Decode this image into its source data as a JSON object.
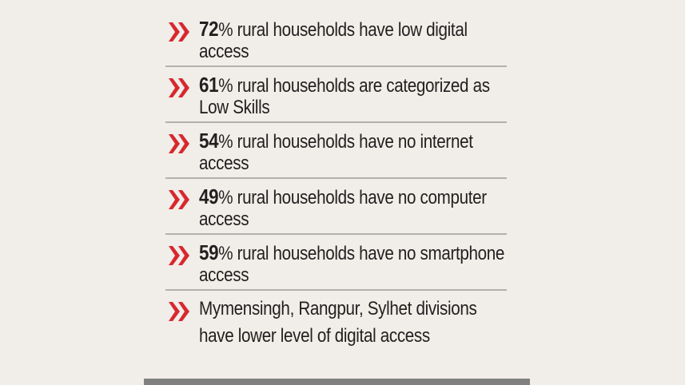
{
  "colors": {
    "background": "#f1ede8",
    "chevron": "#d7282f",
    "text": "#231f20",
    "divider": "#b4b0ad",
    "bar": "#808080"
  },
  "icon": "double-chevron-right-icon",
  "items": [
    {
      "number": "72",
      "text": "% rural households have low digital access"
    },
    {
      "number": "61",
      "text": "% rural households are categorized as Low Skills"
    },
    {
      "number": "54",
      "text": "% rural households have no internet access"
    },
    {
      "number": "49",
      "text": "% rural households have no computer access"
    },
    {
      "number": "59",
      "text": "% rural households have no smartphone access"
    },
    {
      "number": "",
      "text": "Mymensingh, Rangpur, Sylhet divisions have lower level of digital access"
    }
  ]
}
